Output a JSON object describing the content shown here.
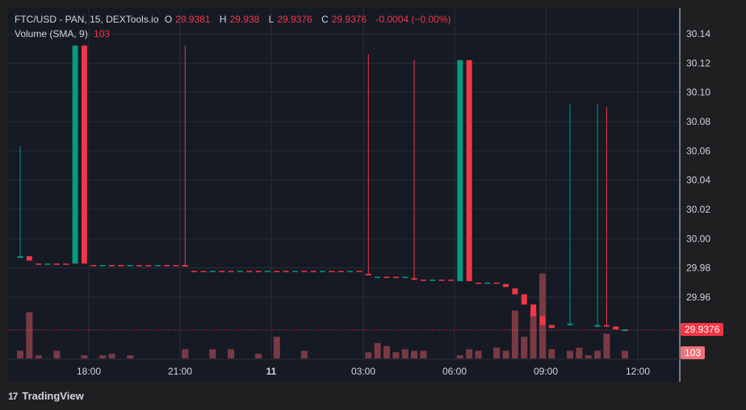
{
  "header": {
    "symbol": "FTC/USD - PAN, 15, DEXTools.io",
    "open_label": "O",
    "open": "29.9381",
    "high_label": "H",
    "high": "29.938",
    "low_label": "L",
    "low": "29.9376",
    "close_label": "C",
    "close": "29.9376",
    "change": "-0.0004 (−0.00%)",
    "volume_label": "Volume (SMA, 9)",
    "volume_value": "103"
  },
  "price_tag": "29.9376",
  "volume_tag": "103",
  "footer": {
    "brand": "TradingView",
    "logo": "17"
  },
  "colors": {
    "up": "#089981",
    "down": "#f23645",
    "bg": "#161a25",
    "volume": "#7a3a44"
  },
  "chart_data": {
    "type": "candlestick",
    "y_axis_ticks": [
      "30.14",
      "30.12",
      "30.10",
      "30.08",
      "30.06",
      "30.04",
      "30.02",
      "30.00",
      "29.98",
      "29.96"
    ],
    "ylim": [
      29.93,
      30.15
    ],
    "x_axis_ticks": [
      "18:00",
      "21:00",
      "11",
      "03:00",
      "06:00",
      "09:00",
      "12:00"
    ],
    "candles": [
      {
        "t": 0,
        "o": 29.988,
        "h": 30.063,
        "l": 29.988,
        "c": 29.988
      },
      {
        "t": 1,
        "o": 29.988,
        "h": 29.988,
        "l": 29.985,
        "c": 29.985
      },
      {
        "t": 6,
        "o": 29.983,
        "h": 30.132,
        "l": 29.983,
        "c": 30.132
      },
      {
        "t": 7,
        "o": 30.132,
        "h": 30.132,
        "l": 29.983,
        "c": 29.983
      },
      {
        "t": 18,
        "o": 29.982,
        "h": 30.132,
        "l": 29.981,
        "c": 29.981
      },
      {
        "t": 38,
        "o": 29.976,
        "h": 30.126,
        "l": 29.975,
        "c": 29.975
      },
      {
        "t": 43,
        "o": 29.973,
        "h": 30.122,
        "l": 29.972,
        "c": 29.972
      },
      {
        "t": 48,
        "o": 29.971,
        "h": 30.122,
        "l": 29.971,
        "c": 30.122
      },
      {
        "t": 49,
        "o": 30.122,
        "h": 30.122,
        "l": 29.971,
        "c": 29.971
      },
      {
        "t": 53,
        "o": 29.969,
        "h": 29.969,
        "l": 29.967,
        "c": 29.967
      },
      {
        "t": 54,
        "o": 29.966,
        "h": 29.966,
        "l": 29.962,
        "c": 29.962
      },
      {
        "t": 55,
        "o": 29.962,
        "h": 29.962,
        "l": 29.955,
        "c": 29.955
      },
      {
        "t": 56,
        "o": 29.955,
        "h": 29.955,
        "l": 29.947,
        "c": 29.947
      },
      {
        "t": 57,
        "o": 29.947,
        "h": 29.947,
        "l": 29.941,
        "c": 29.941
      },
      {
        "t": 58,
        "o": 29.941,
        "h": 29.941,
        "l": 29.939,
        "c": 29.939
      },
      {
        "t": 60,
        "o": 29.942,
        "h": 30.092,
        "l": 29.942,
        "c": 29.942
      },
      {
        "t": 63,
        "o": 29.941,
        "h": 30.092,
        "l": 29.941,
        "c": 29.941
      },
      {
        "t": 64,
        "o": 29.941,
        "h": 30.09,
        "l": 29.94,
        "c": 29.94
      },
      {
        "t": 65,
        "o": 29.94,
        "h": 29.94,
        "l": 29.938,
        "c": 29.938
      },
      {
        "t": 66,
        "o": 29.938,
        "h": 29.938,
        "l": 29.938,
        "c": 29.938
      }
    ],
    "volumes": [
      {
        "t": 0,
        "v": 5
      },
      {
        "t": 1,
        "v": 30
      },
      {
        "t": 2,
        "v": 2
      },
      {
        "t": 4,
        "v": 5
      },
      {
        "t": 7,
        "v": 2
      },
      {
        "t": 9,
        "v": 2
      },
      {
        "t": 10,
        "v": 3
      },
      {
        "t": 12,
        "v": 2
      },
      {
        "t": 18,
        "v": 6
      },
      {
        "t": 21,
        "v": 6
      },
      {
        "t": 23,
        "v": 6
      },
      {
        "t": 26,
        "v": 3
      },
      {
        "t": 28,
        "v": 14
      },
      {
        "t": 31,
        "v": 5
      },
      {
        "t": 38,
        "v": 4
      },
      {
        "t": 39,
        "v": 10
      },
      {
        "t": 40,
        "v": 8
      },
      {
        "t": 41,
        "v": 4
      },
      {
        "t": 42,
        "v": 6
      },
      {
        "t": 43,
        "v": 5
      },
      {
        "t": 44,
        "v": 5
      },
      {
        "t": 48,
        "v": 2
      },
      {
        "t": 49,
        "v": 6
      },
      {
        "t": 50,
        "v": 5
      },
      {
        "t": 52,
        "v": 7
      },
      {
        "t": 53,
        "v": 5
      },
      {
        "t": 54,
        "v": 31
      },
      {
        "t": 55,
        "v": 14
      },
      {
        "t": 56,
        "v": 31
      },
      {
        "t": 57,
        "v": 55
      },
      {
        "t": 58,
        "v": 6
      },
      {
        "t": 60,
        "v": 5
      },
      {
        "t": 61,
        "v": 7
      },
      {
        "t": 62,
        "v": 2
      },
      {
        "t": 63,
        "v": 5
      },
      {
        "t": 64,
        "v": 16
      },
      {
        "t": 66,
        "v": 5
      }
    ],
    "volume_ylim": [
      0,
      60
    ]
  }
}
